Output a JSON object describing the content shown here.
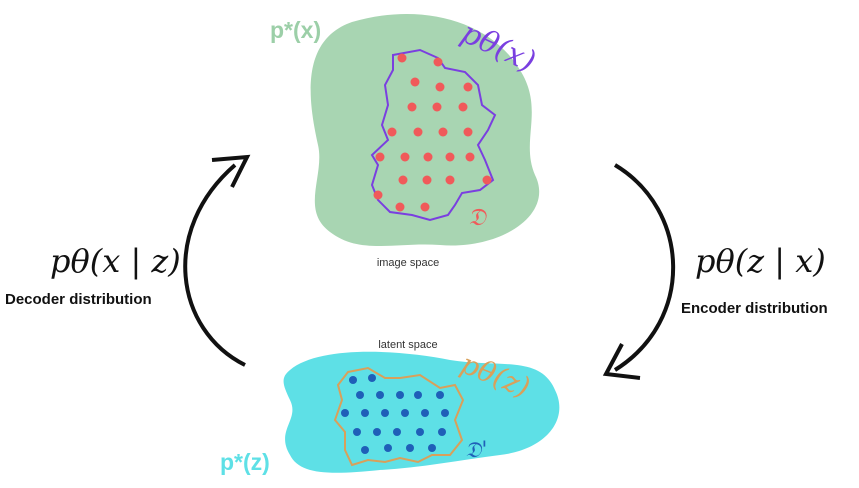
{
  "image_space": {
    "distribution_label": "p*(x)",
    "model_label": "pθ(x)",
    "dataset_label": "𝔇",
    "caption": "image space",
    "colors": {
      "blob": "#a8d5b2",
      "label": "#9ccfa8",
      "contour": "#7a3fe0",
      "points": "#f05a5a",
      "dataset": "#f05a5a"
    }
  },
  "latent_space": {
    "distribution_label": "p*(z)",
    "model_label": "pθ(z)",
    "dataset_label": "𝔇'",
    "caption": "latent space",
    "colors": {
      "blob": "#5ee0e6",
      "label": "#5ee0e6",
      "contour": "#d9a05a",
      "points": "#1f5fb8",
      "dataset": "#1f5fb8"
    }
  },
  "decoder": {
    "formula": "pθ(x | z)",
    "label": "Decoder distribution"
  },
  "encoder": {
    "formula": "pθ(z | x)",
    "label": "Encoder distribution"
  }
}
